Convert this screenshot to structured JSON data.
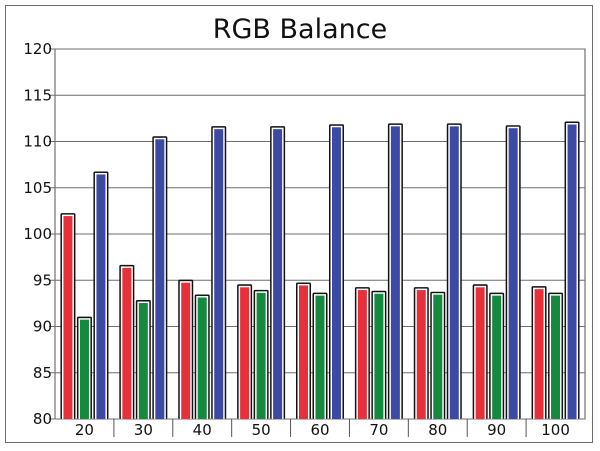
{
  "chart_data": {
    "type": "bar",
    "title": "RGB Balance",
    "xlabel": "",
    "ylabel": "",
    "categories": [
      "20",
      "30",
      "40",
      "50",
      "60",
      "70",
      "80",
      "90",
      "100"
    ],
    "ylim": [
      80,
      120
    ],
    "yticks": [
      80,
      85,
      90,
      95,
      100,
      105,
      110,
      115,
      120
    ],
    "grid": true,
    "series": [
      {
        "color": "#e8303a",
        "values": [
          102.1,
          96.5,
          94.9,
          94.4,
          94.6,
          94.1,
          94.1,
          94.4,
          94.2
        ]
      },
      {
        "color": "#138a3d",
        "values": [
          90.9,
          92.7,
          93.3,
          93.8,
          93.5,
          93.7,
          93.6,
          93.5,
          93.5
        ]
      },
      {
        "color": "#3c4aa6",
        "values": [
          106.6,
          110.4,
          111.5,
          111.5,
          111.7,
          111.8,
          111.8,
          111.6,
          112.0
        ]
      }
    ]
  }
}
